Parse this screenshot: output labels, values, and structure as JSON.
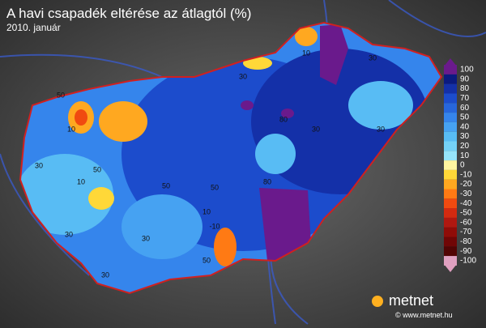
{
  "header": {
    "title": "A havi csapadék eltérése az átlagtól (%)",
    "subtitle": "2010. január"
  },
  "legend": [
    {
      "label": 100,
      "color": "#6a1a8c"
    },
    {
      "label": 90,
      "color": "#0b1a80"
    },
    {
      "label": 80,
      "color": "#1430a8"
    },
    {
      "label": 70,
      "color": "#1c4ccc"
    },
    {
      "label": 60,
      "color": "#2766dc"
    },
    {
      "label": 50,
      "color": "#3585ec"
    },
    {
      "label": 40,
      "color": "#46a2f2"
    },
    {
      "label": 30,
      "color": "#58bcf4"
    },
    {
      "label": 20,
      "color": "#74d2f8"
    },
    {
      "label": 10,
      "color": "#96e4fa"
    },
    {
      "label": 0,
      "color": "#fff6a0"
    },
    {
      "label": -10,
      "color": "#ffd838"
    },
    {
      "label": -20,
      "color": "#ffa820"
    },
    {
      "label": -30,
      "color": "#ff7a14"
    },
    {
      "label": -40,
      "color": "#f04a10"
    },
    {
      "label": -50,
      "color": "#d42a10"
    },
    {
      "label": -60,
      "color": "#b01810"
    },
    {
      "label": -70,
      "color": "#900c08"
    },
    {
      "label": -80,
      "color": "#700606"
    },
    {
      "label": -90,
      "color": "#520404"
    },
    {
      "label": -100,
      "color": "#e0a0c0"
    }
  ],
  "contour_labels": [
    30,
    50,
    10,
    30,
    50,
    10,
    30,
    50,
    30,
    80,
    30,
    50,
    80,
    30,
    10,
    -10,
    30,
    50,
    30,
    10
  ],
  "logo": {
    "name": "metnet",
    "url": "© www.metnet.hu"
  }
}
